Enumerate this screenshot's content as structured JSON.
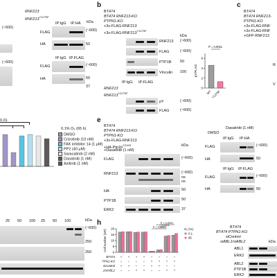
{
  "panels": {
    "b": "b",
    "c": "c",
    "e": "e",
    "h": "h"
  },
  "a_right": {
    "rows": [
      "RNF213",
      "RNF213"
    ],
    "row2_sup": "Y1275F",
    "ip_igg": "IP:IgG",
    "ip_ha": "IP:HA",
    "ip_igg2": "IP:IgG",
    "ip_flag": "IP:FLAG",
    "flag": "FLAG",
    "ha": "HA",
    "flag2": "FLAG",
    "ha2": "HA",
    "kda": "kDa",
    "marks": [
      "(~600)",
      "50",
      "(~600)",
      "50",
      "37"
    ],
    "marks_left": [
      "(~600)",
      "(~600)"
    ]
  },
  "b": {
    "conditions": [
      "BT474",
      "BT474 RNF213-KO",
      "PTPN1-KO",
      "+3x-FLAG-RNF213",
      "+3x-FLAG-RNF213"
    ],
    "cond5_sup": "Y1275F",
    "lanes": [
      "RNF213",
      "FLAG",
      "PTP1B",
      "Vinculin"
    ],
    "ip": "IP:FLAG",
    "ip_igg": "IP:IgG",
    "ip_rows": [
      "RNF213",
      "RNF213"
    ],
    "ip_row2_sup": "Y1275F",
    "ip_lanes": [
      "pY",
      "FLAG"
    ],
    "marks": [
      "(~600)",
      "(~600)",
      "50",
      "100",
      "(~600)",
      "(~600)"
    ],
    "kda": "kDa"
  },
  "b_chart": {
    "type": "bar",
    "ylabel": "pY/FLAG",
    "categories": [
      "WT",
      "Y1275F"
    ],
    "values": [
      4.6,
      1.3
    ],
    "ylim": [
      0,
      7
    ],
    "yticks": [
      "0",
      "2",
      "4",
      "6"
    ],
    "pvalue": "P = 0.0011",
    "colors": [
      "#9d9d9d",
      "#f27aa0"
    ]
  },
  "c": {
    "conditions": [
      "BT474",
      "BT474 RNF213-",
      "PTPN1-KO",
      "+3x-FLAG-RNF",
      "+3x-FLAG-RNF",
      "+GFP-RNF213"
    ],
    "lanes": [
      "R",
      "V"
    ]
  },
  "d_frag": {
    "header": "0.01",
    "legend_title": "0.1% O₂ (65 h)",
    "legend": [
      "DMSO",
      "Crizotinib (10 nM)",
      "FAK inhibitor 14 (1 μM)",
      "PP2 (40 μM)",
      "Saracatinib (2 nM)",
      "Dasatinib (1 nM)",
      "Axitinib (1 nM)"
    ],
    "legend_colors": [
      "#9e9e9e",
      "#a494c9",
      "#58c4e3",
      "#b4dff0",
      "#e7e7e7",
      "#5a5a5a",
      "#5a5a5a"
    ]
  },
  "e": {
    "conditions": [
      "BT474",
      "BT474 RNF213-KO",
      "PTPN1-KO",
      "+3x-FLAG-RNF213",
      "+HA-Ptp1b",
      "+Dasatinib (1 nM)"
    ],
    "ha_sup": "C215S",
    "lanes": [
      "FLAG",
      "RNF213",
      "HA",
      "PTP1B",
      "ERK2"
    ],
    "marks": [
      "(~600)",
      "(~600)",
      "50",
      "50",
      "37"
    ],
    "marks2": [
      "ns",
      "ns"
    ],
    "kda": "kDa",
    "ip_header": "DMSO",
    "ip_header2": "Dasatinib (1 nM)",
    "ip_igg": "IP:IgG",
    "ip_ha": "IP:HA",
    "ip_igg2": "IP:IgG",
    "ip_flag": "IP:FLAG",
    "ip_lanes": [
      "FLAG",
      "HA",
      "FLAG",
      "HA"
    ],
    "ip_marks": [
      "(~600)",
      "50",
      "(~600)",
      "50"
    ]
  },
  "f_frag": {
    "lanes_header": [
      "25",
      "50",
      "100",
      "25",
      "50",
      "100"
    ],
    "kda": "kDa",
    "marks": [
      "(~600)",
      "250",
      "250"
    ]
  },
  "h_chart": {
    "type": "bar",
    "ylabel": "Cell number (10³)",
    "yticks": [
      "0",
      "5",
      "10",
      "15",
      "20"
    ],
    "ylim": [
      0,
      20
    ],
    "categories": [
      "1",
      "2",
      "3",
      "4",
      "5",
      "6",
      "7",
      "8"
    ],
    "series": [
      {
        "name": "0.1",
        "values": [
          17.2,
          17.5,
          17.0,
          17.2,
          1.0,
          2.1,
          13.8,
          14.6
        ],
        "color": "#9a9a9a"
      },
      {
        "name": "95",
        "values": [
          17.5,
          17.6,
          17.2,
          17.4,
          1.1,
          2.3,
          14.3,
          16.0
        ],
        "color": "#f06d95"
      }
    ],
    "pvalues": [
      "P = 0.0001",
      "P < 0.0001",
      "P = 0.0001"
    ],
    "legend_title": "O₂ (%)",
    "legend": [
      "0.1",
      "95"
    ],
    "row_labels": [
      "BT474",
      "BT474 PTPN1-KO",
      "siControl",
      "siABL1/siABL2"
    ],
    "signs": [
      [
        "+",
        "+",
        "+",
        "+",
        "–",
        "–",
        "–",
        "–"
      ],
      [
        "–",
        "–",
        "–",
        "–",
        "+",
        "+",
        "+",
        "+"
      ],
      [
        "+",
        "+",
        "–",
        "–",
        "+",
        "+",
        "–",
        "–"
      ],
      [
        "–",
        "–",
        "+",
        "+",
        "–",
        "–",
        "+",
        "+"
      ]
    ]
  },
  "i_frag": {
    "conditions": [
      "BT474",
      "BT474 PTPN1-KO",
      "siControl",
      "siABL1/siABL2"
    ],
    "lanes": [
      "ABL1",
      "ERK2",
      "ABL2",
      "PTP1B",
      "ERK2"
    ],
    "kda": "kDa"
  }
}
